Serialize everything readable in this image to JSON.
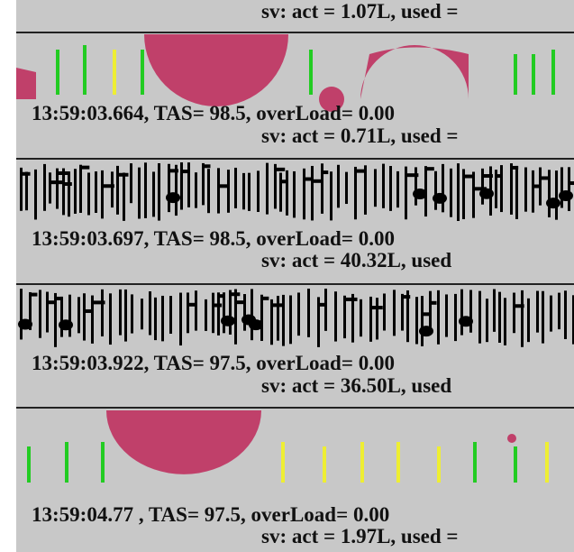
{
  "top_line": "sv: act = 1.07L, used =",
  "records": [
    {
      "time_line": "13:59:03.664, TAS= 98.5, overLoad= 0.00",
      "sv_line": "sv: act = 0.71L, used ="
    },
    {
      "time_line": "13:59:03.697, TAS= 98.5, overLoad= 0.00",
      "sv_line": "sv: act = 40.32L, used"
    },
    {
      "time_line": "13:59:03.922, TAS= 97.5, overLoad= 0.00",
      "sv_line": "sv: act = 36.50L, used"
    },
    {
      "time_line": "13:59:04.77 , TAS= 97.5, overLoad= 0.00",
      "sv_line": "sv: act = 1.97L, used ="
    }
  ]
}
